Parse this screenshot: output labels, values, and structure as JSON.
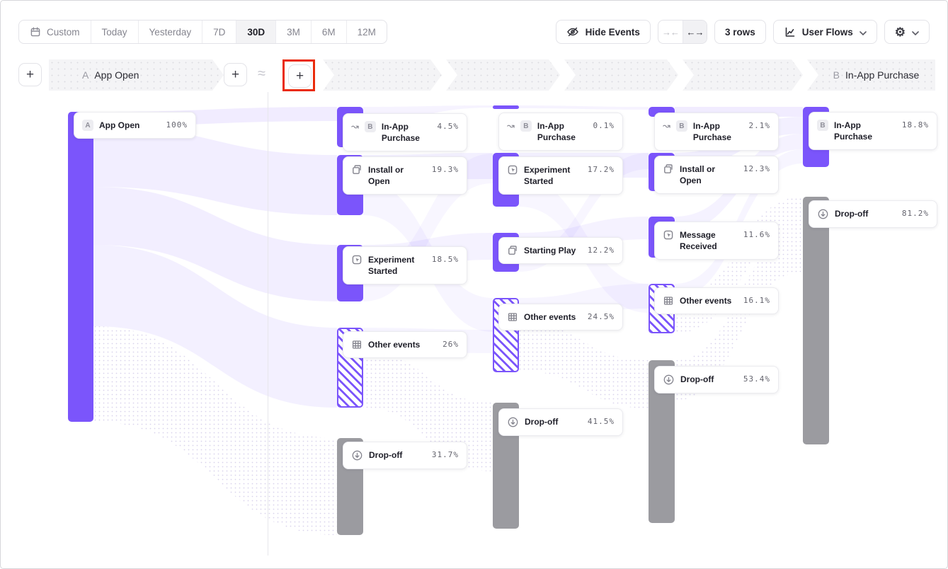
{
  "toolbar": {
    "date_ranges": {
      "items": [
        "Custom",
        "Today",
        "Yesterday",
        "7D",
        "30D",
        "3M",
        "6M",
        "12M"
      ],
      "selected": "30D"
    },
    "hide_events_label": "Hide Events",
    "collapse_symbol": "→←",
    "expand_symbol": "←→",
    "rows_label": "3 rows",
    "view_label": "User Flows",
    "gear_symbol": "⚙"
  },
  "header": {
    "add_symbol": "+",
    "approx_symbol": "≈",
    "steps": [
      {
        "letter": "A",
        "label": "App Open"
      },
      {
        "letter": "",
        "label": ""
      },
      {
        "letter": "",
        "label": ""
      },
      {
        "letter": "",
        "label": ""
      },
      {
        "letter": "",
        "label": ""
      },
      {
        "letter": "B",
        "label": "In-App Purchase"
      }
    ]
  },
  "sankey": {
    "columns": [
      {
        "nodes": [
          {
            "label": "App Open",
            "pct": "100%",
            "badge": "A",
            "icon": null,
            "style": "solid"
          }
        ]
      },
      {
        "nodes": [
          {
            "label": "In-App Purchase",
            "pct": "4.5%",
            "badge": "B",
            "icon": "trend-arrow",
            "style": "solid"
          },
          {
            "label": "Install or Open",
            "pct": "19.3%",
            "icon": "copy",
            "style": "solid"
          },
          {
            "label": "Experiment Started",
            "pct": "18.5%",
            "icon": "click",
            "style": "solid"
          },
          {
            "label": "Other events",
            "pct": "26%",
            "icon": "grid",
            "style": "hatched"
          },
          {
            "label": "Drop-off",
            "pct": "31.7%",
            "icon": "drop-off",
            "style": "gray"
          }
        ]
      },
      {
        "nodes": [
          {
            "label": "In-App Purchase",
            "pct": "0.1%",
            "badge": "B",
            "icon": "trend-arrow",
            "style": "solid"
          },
          {
            "label": "Experiment Started",
            "pct": "17.2%",
            "icon": "click",
            "style": "solid"
          },
          {
            "label": "Starting Play",
            "pct": "12.2%",
            "icon": "copy",
            "style": "solid"
          },
          {
            "label": "Other events",
            "pct": "24.5%",
            "icon": "grid",
            "style": "hatched"
          },
          {
            "label": "Drop-off",
            "pct": "41.5%",
            "icon": "drop-off",
            "style": "gray"
          }
        ]
      },
      {
        "nodes": [
          {
            "label": "In-App Purchase",
            "pct": "2.1%",
            "badge": "B",
            "icon": "trend-arrow",
            "style": "solid"
          },
          {
            "label": "Install or Open",
            "pct": "12.3%",
            "icon": "copy",
            "style": "solid"
          },
          {
            "label": "Message Received",
            "pct": "11.6%",
            "icon": "click",
            "style": "solid"
          },
          {
            "label": "Other events",
            "pct": "16.1%",
            "icon": "grid",
            "style": "hatched"
          },
          {
            "label": "Drop-off",
            "pct": "53.4%",
            "icon": "drop-off",
            "style": "gray"
          }
        ]
      },
      {
        "nodes": [
          {
            "label": "In-App Purchase",
            "pct": "18.8%",
            "badge": "B",
            "icon": null,
            "style": "solid"
          },
          {
            "label": "Drop-off",
            "pct": "81.2%",
            "icon": "drop-off",
            "style": "gray"
          }
        ]
      }
    ]
  },
  "colors": {
    "accent_purple": "#7B55FB",
    "dropoff_gray": "#9B9BA0",
    "highlight_red": "#EA2B0B"
  }
}
